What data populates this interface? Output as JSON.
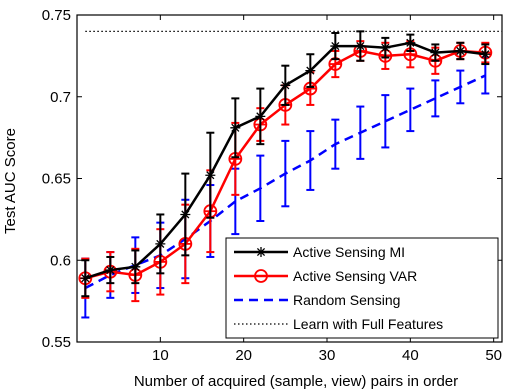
{
  "chart_data": {
    "type": "line",
    "xlabel": "Number of acquired (sample, view) pairs in order",
    "ylabel": "Test AUC Score",
    "xlim": [
      0,
      51
    ],
    "ylim": [
      0.55,
      0.75
    ],
    "xticks": [
      10,
      20,
      30,
      40,
      50
    ],
    "xtick_labels": [
      "10",
      "20",
      "30",
      "40",
      "50"
    ],
    "yticks": [
      0.55,
      0.6,
      0.65,
      0.7,
      0.75
    ],
    "ytick_labels": [
      "0.55",
      "0.6",
      "0.65",
      "0.7",
      "0.75"
    ],
    "grid": false,
    "legend_position": "bottom-right",
    "series": [
      {
        "name": "Active Sensing MI",
        "color": "#000000",
        "style": "solid-star",
        "x": [
          1,
          4,
          7,
          10,
          13,
          16,
          19,
          22,
          25,
          28,
          31,
          34,
          37,
          40,
          43,
          46,
          49
        ],
        "y": [
          0.589,
          0.594,
          0.596,
          0.61,
          0.628,
          0.652,
          0.681,
          0.688,
          0.707,
          0.716,
          0.731,
          0.731,
          0.73,
          0.733,
          0.727,
          0.728,
          0.726
        ],
        "err": [
          0.011,
          0.008,
          0.01,
          0.018,
          0.025,
          0.026,
          0.018,
          0.017,
          0.012,
          0.01,
          0.008,
          0.009,
          0.006,
          0.005,
          0.005,
          0.005,
          0.006
        ]
      },
      {
        "name": "Active Sensing VAR",
        "color": "#ff0000",
        "style": "solid-circle",
        "x": [
          1,
          4,
          7,
          10,
          13,
          16,
          19,
          22,
          25,
          28,
          31,
          34,
          37,
          40,
          43,
          46,
          49
        ],
        "y": [
          0.589,
          0.593,
          0.591,
          0.599,
          0.61,
          0.63,
          0.662,
          0.683,
          0.695,
          0.705,
          0.72,
          0.728,
          0.725,
          0.726,
          0.722,
          0.728,
          0.727
        ],
        "err": [
          0.012,
          0.012,
          0.016,
          0.02,
          0.024,
          0.025,
          0.022,
          0.01,
          0.012,
          0.01,
          0.008,
          0.006,
          0.008,
          0.008,
          0.008,
          0.005,
          0.006
        ]
      },
      {
        "name": "Random Sensing",
        "color": "#0000ff",
        "style": "dashed",
        "x": [
          1,
          4,
          7,
          10,
          13,
          16,
          19,
          22,
          25,
          28,
          31,
          34,
          37,
          40,
          43,
          46,
          49
        ],
        "y": [
          0.583,
          0.591,
          0.597,
          0.603,
          0.613,
          0.624,
          0.636,
          0.644,
          0.653,
          0.661,
          0.671,
          0.678,
          0.685,
          0.692,
          0.699,
          0.706,
          0.713
        ],
        "err": [
          0.018,
          0.014,
          0.017,
          0.02,
          0.024,
          0.022,
          0.02,
          0.02,
          0.02,
          0.018,
          0.015,
          0.016,
          0.016,
          0.013,
          0.011,
          0.01,
          0.011
        ]
      },
      {
        "name": "Learn with Full Features",
        "color": "#000000",
        "style": "dotted",
        "x": [
          1,
          51
        ],
        "y": [
          0.74,
          0.74
        ]
      }
    ]
  }
}
